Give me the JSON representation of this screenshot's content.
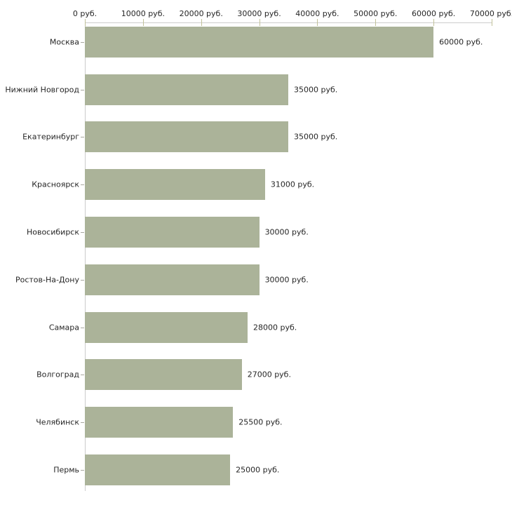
{
  "chart": {
    "bar_color": "#abb399",
    "axis_line_color": "#cccccc",
    "x_tick_color": "#c2c29a",
    "category_tick_color": "#a8a8a0",
    "text_color": "#262626",
    "background_color": "#ffffff"
  },
  "chart_data": {
    "type": "bar",
    "orientation": "horizontal",
    "title": "",
    "xlabel": "",
    "ylabel": "",
    "unit": "руб.",
    "xlim": [
      0,
      70000
    ],
    "grid": false,
    "legend": "none",
    "x_tick_labels": [
      "0 руб.",
      "10000 руб.",
      "20000 руб.",
      "30000 руб.",
      "40000 руб.",
      "50000 руб.",
      "60000 руб.",
      "70000 руб."
    ],
    "x_tick_values": [
      0,
      10000,
      20000,
      30000,
      40000,
      50000,
      60000,
      70000
    ],
    "categories": [
      "Москва",
      "Нижний Новгород",
      "Екатеринбург",
      "Красноярск",
      "Новосибирск",
      "Ростов-На-Дону",
      "Самара",
      "Волгоград",
      "Челябинск",
      "Пермь"
    ],
    "values": [
      60000,
      35000,
      35000,
      31000,
      30000,
      30000,
      28000,
      27000,
      25500,
      25000
    ],
    "value_labels": [
      "60000 руб.",
      "35000 руб.",
      "35000 руб.",
      "31000 руб.",
      "30000 руб.",
      "30000 руб.",
      "28000 руб.",
      "27000 руб.",
      "25500 руб.",
      "25000 руб."
    ]
  }
}
